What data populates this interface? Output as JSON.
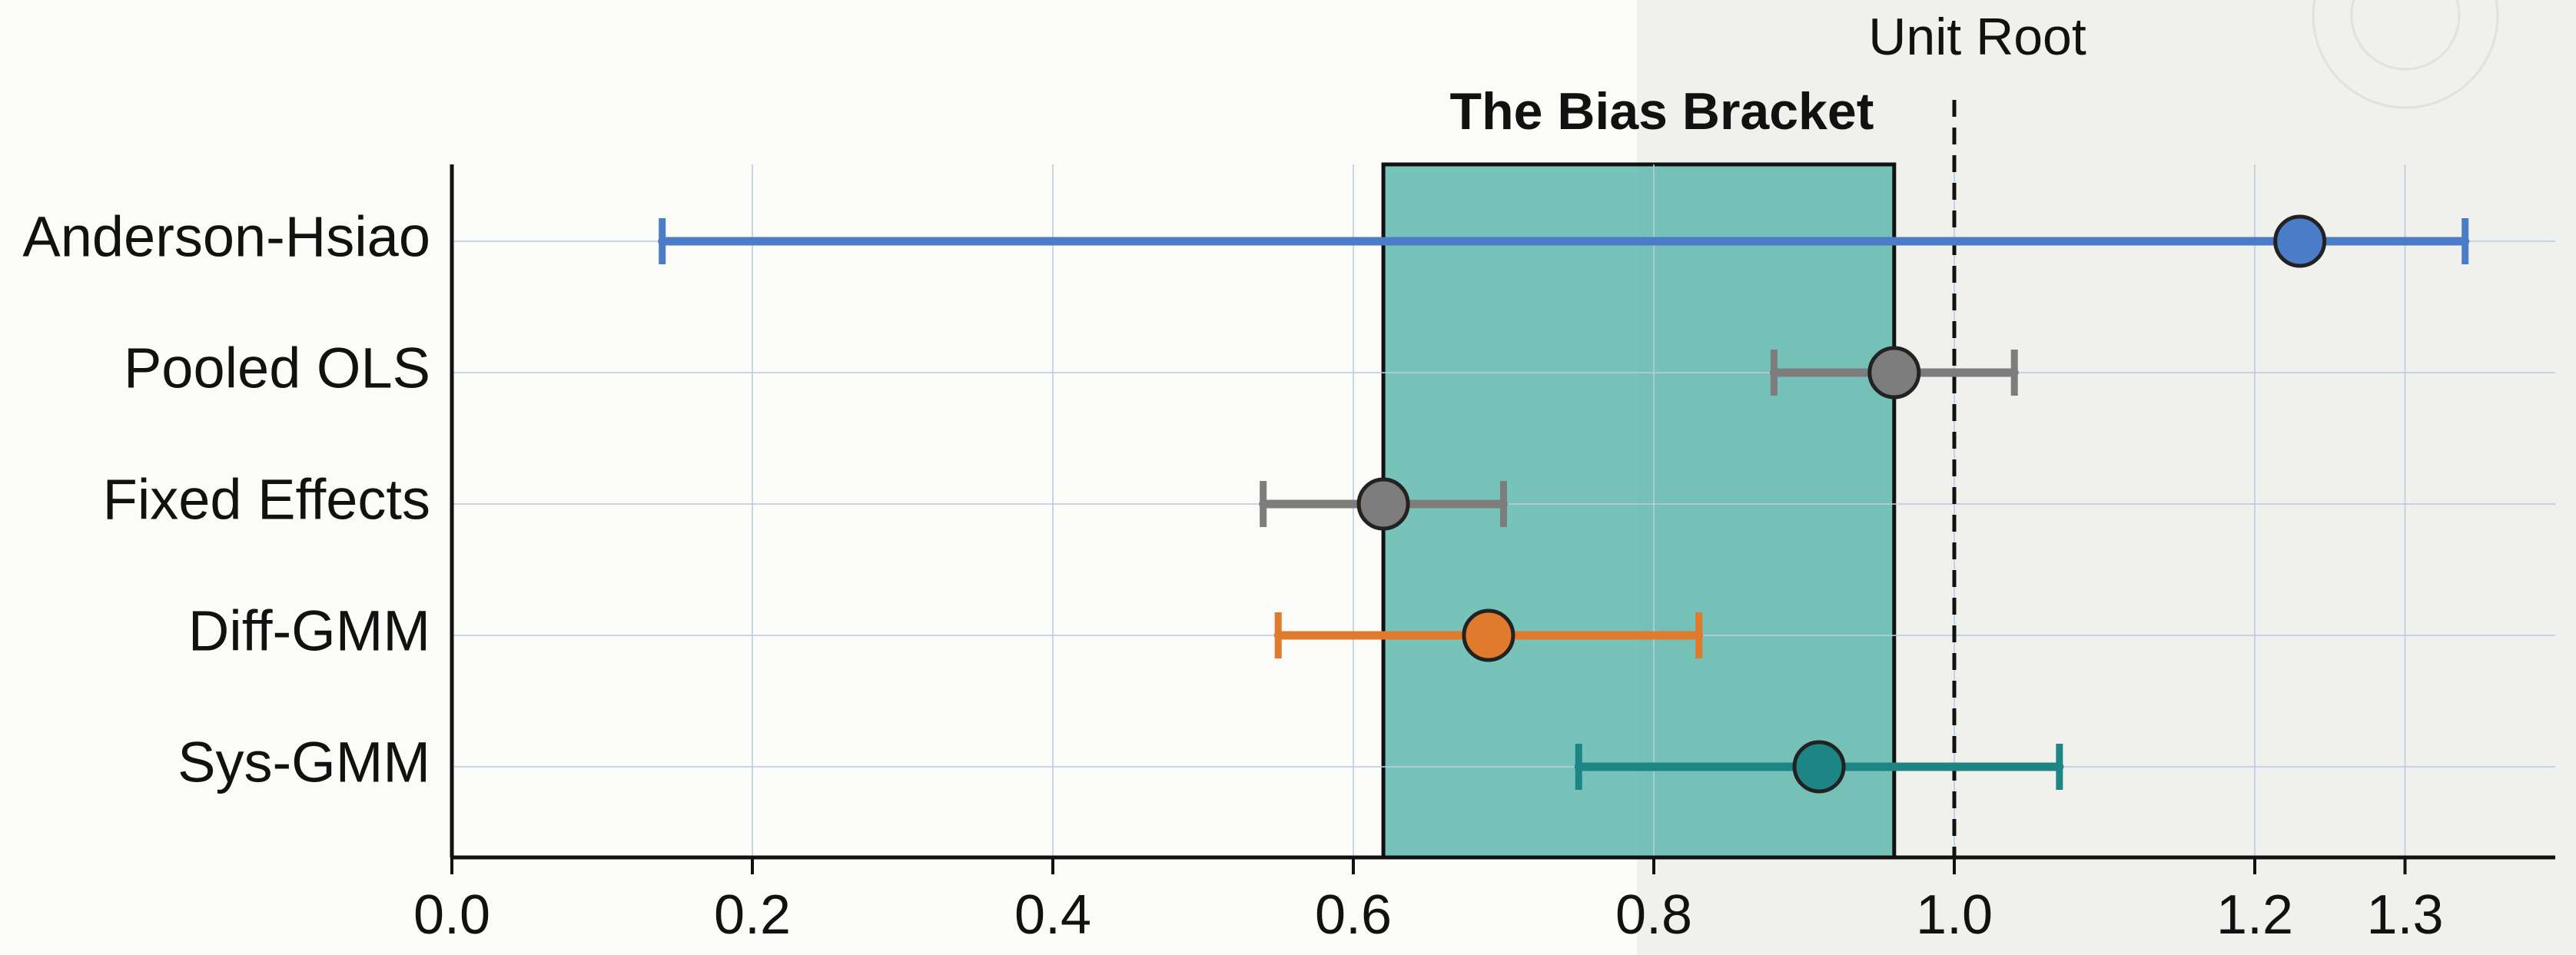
{
  "chart_data": {
    "type": "errorbar",
    "title": "The Bias Bracket",
    "categories": [
      "Anderson-Hsiao",
      "Pooled OLS",
      "Fixed Effects",
      "Diff-GMM",
      "Sys-GMM"
    ],
    "estimates": [
      1.23,
      0.96,
      0.62,
      0.69,
      0.91
    ],
    "lower": [
      0.14,
      0.88,
      0.54,
      0.55,
      0.75
    ],
    "upper": [
      1.34,
      1.04,
      0.7,
      0.83,
      1.07
    ],
    "colors": [
      "#4a7cc7",
      "#7d7d7d",
      "#7d7d7d",
      "#e07a2c",
      "#1e8585"
    ],
    "bracket": {
      "label": "The Bias Bracket",
      "x0": 0.62,
      "x1": 0.96,
      "color": "#5fb8ae"
    },
    "reference_line": {
      "label": "Unit Root",
      "x": 1.0
    },
    "xlim": [
      0,
      1.4
    ],
    "xticks": [
      {
        "value": 0,
        "label": "0.0"
      },
      0.2,
      0.4,
      0.6,
      0.8,
      {
        "value": 1,
        "label": "1.0"
      },
      1.2,
      1.3
    ],
    "grid": true
  }
}
